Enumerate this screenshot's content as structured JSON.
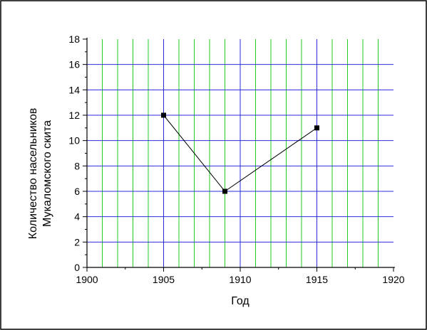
{
  "chart_data": {
    "type": "line",
    "xlabel": "Год",
    "ylabel_lines": [
      "Количество насельников",
      "Мукаломского скита"
    ],
    "xlim": [
      1900,
      1920
    ],
    "ylim": [
      0,
      18
    ],
    "xticks": [
      "1900",
      "1905",
      "1910",
      "1915",
      "1920"
    ],
    "yticks": [
      "0",
      "2",
      "4",
      "6",
      "8",
      "10",
      "12",
      "14",
      "16",
      "18"
    ],
    "major_grid": true,
    "minor_grid": true,
    "x": [
      1905,
      1909,
      1915
    ],
    "y": [
      12,
      6,
      11
    ],
    "colors": {
      "major_grid": "#2b2bd9",
      "minor_grid": "#22cc22",
      "series": "#000000",
      "frame": "#000000"
    }
  }
}
